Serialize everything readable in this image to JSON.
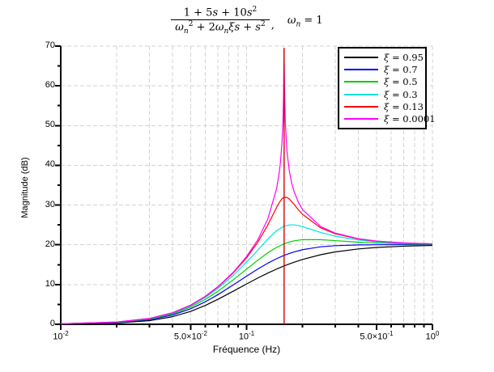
{
  "title": {
    "numerator": "1 + 5s + 10s^{2}",
    "denominator": "ω_{n}^{2} + 2ω_{n}ξs + s^{2}",
    "separator": ",",
    "note": "ω_{n} = 1"
  },
  "chart_data": {
    "type": "line",
    "xscale": "log",
    "xlabel": "Fréquence (Hz)",
    "ylabel": "Magnitude (dB)",
    "xlim": [
      0.01,
      1
    ],
    "ylim": [
      0,
      70
    ],
    "grid": true,
    "grid_color": "#d3d3d3",
    "legend_position": "upper right",
    "xticks": [
      {
        "v": 0.01,
        "label": "10^{-2}"
      },
      {
        "v": 0.05,
        "label": "5.0×10^{-2}"
      },
      {
        "v": 0.1,
        "label": "10^{-1}"
      },
      {
        "v": 0.5,
        "label": "5.0×10^{-1}"
      },
      {
        "v": 1,
        "label": "10^{0}"
      }
    ],
    "xticks_minor": [
      0.02,
      0.03,
      0.04,
      0.06,
      0.07,
      0.08,
      0.09,
      0.2,
      0.3,
      0.4,
      0.6,
      0.7,
      0.8,
      0.9
    ],
    "yticks": [
      0,
      10,
      20,
      30,
      40,
      50,
      60,
      70
    ],
    "yticks_minor": [
      5,
      15,
      25,
      35,
      45,
      55,
      65
    ],
    "resonance_line": {
      "x": 0.159155,
      "y0": 0,
      "y1": 69.5,
      "color": "#d40000"
    },
    "series": [
      {
        "name": "ξ = 0.95",
        "xi": 0.95,
        "color": "#000000",
        "points": [
          [
            0.01,
            0.06
          ],
          [
            0.02,
            0.32
          ],
          [
            0.03,
            0.91
          ],
          [
            0.04,
            1.91
          ],
          [
            0.05,
            3.25
          ],
          [
            0.06,
            4.75
          ],
          [
            0.07,
            6.27
          ],
          [
            0.085,
            8.36
          ],
          [
            0.1,
            10.15
          ],
          [
            0.115,
            11.65
          ],
          [
            0.13,
            12.88
          ],
          [
            0.145,
            13.89
          ],
          [
            0.159,
            14.68
          ],
          [
            0.17,
            15.19
          ],
          [
            0.18,
            15.61
          ],
          [
            0.2,
            16.31
          ],
          [
            0.25,
            17.5
          ],
          [
            0.3,
            18.21
          ],
          [
            0.4,
            18.96
          ],
          [
            0.5,
            19.33
          ],
          [
            0.7,
            19.65
          ],
          [
            1,
            19.83
          ]
        ]
      },
      {
        "name": "ξ = 0.7",
        "xi": 0.7,
        "color": "#0000ff",
        "points": [
          [
            0.01,
            0.09
          ],
          [
            0.02,
            0.43
          ],
          [
            0.03,
            1.15
          ],
          [
            0.04,
            2.34
          ],
          [
            0.05,
            3.9
          ],
          [
            0.06,
            5.66
          ],
          [
            0.07,
            7.44
          ],
          [
            0.085,
            9.94
          ],
          [
            0.1,
            12.12
          ],
          [
            0.115,
            13.92
          ],
          [
            0.13,
            15.37
          ],
          [
            0.145,
            16.51
          ],
          [
            0.159,
            17.33
          ],
          [
            0.17,
            17.82
          ],
          [
            0.18,
            18.2
          ],
          [
            0.2,
            18.77
          ],
          [
            0.25,
            19.5
          ],
          [
            0.3,
            19.78
          ],
          [
            0.4,
            19.96
          ],
          [
            0.5,
            20.0
          ],
          [
            0.7,
            20.01
          ],
          [
            1,
            20.01
          ]
        ]
      },
      {
        "name": "ξ = 0.5",
        "xi": 0.5,
        "color": "#00cc00",
        "points": [
          [
            0.01,
            0.11
          ],
          [
            0.02,
            0.5
          ],
          [
            0.03,
            1.3
          ],
          [
            0.04,
            2.61
          ],
          [
            0.05,
            4.33
          ],
          [
            0.06,
            6.28
          ],
          [
            0.07,
            8.3
          ],
          [
            0.085,
            11.23
          ],
          [
            0.1,
            13.87
          ],
          [
            0.115,
            16.14
          ],
          [
            0.13,
            17.98
          ],
          [
            0.145,
            19.36
          ],
          [
            0.159,
            20.25
          ],
          [
            0.17,
            20.71
          ],
          [
            0.18,
            21.0
          ],
          [
            0.2,
            21.3
          ],
          [
            0.25,
            21.29
          ],
          [
            0.3,
            21.05
          ],
          [
            0.4,
            20.66
          ],
          [
            0.5,
            20.44
          ],
          [
            0.7,
            20.23
          ],
          [
            1,
            20.11
          ]
        ]
      },
      {
        "name": "ξ = 0.3",
        "xi": 0.3,
        "color": "#00e0e0",
        "points": [
          [
            0.01,
            0.12
          ],
          [
            0.02,
            0.54
          ],
          [
            0.03,
            1.41
          ],
          [
            0.04,
            2.8
          ],
          [
            0.05,
            4.64
          ],
          [
            0.06,
            6.76
          ],
          [
            0.07,
            8.99
          ],
          [
            0.085,
            12.36
          ],
          [
            0.1,
            15.62
          ],
          [
            0.115,
            18.7
          ],
          [
            0.13,
            21.44
          ],
          [
            0.145,
            23.54
          ],
          [
            0.159,
            24.69
          ],
          [
            0.17,
            25.02
          ],
          [
            0.18,
            25.02
          ],
          [
            0.19,
            24.84
          ],
          [
            0.2,
            24.56
          ],
          [
            0.25,
            23.11
          ],
          [
            0.3,
            22.16
          ],
          [
            0.4,
            21.2
          ],
          [
            0.5,
            20.76
          ],
          [
            0.7,
            20.38
          ],
          [
            1,
            20.19
          ]
        ]
      },
      {
        "name": "ξ = 0.13",
        "xi": 0.13,
        "color": "#ff0000",
        "points": [
          [
            0.01,
            0.13
          ],
          [
            0.02,
            0.56
          ],
          [
            0.03,
            1.46
          ],
          [
            0.04,
            2.89
          ],
          [
            0.05,
            4.79
          ],
          [
            0.06,
            6.99
          ],
          [
            0.07,
            9.35
          ],
          [
            0.085,
            12.99
          ],
          [
            0.1,
            16.74
          ],
          [
            0.115,
            20.69
          ],
          [
            0.13,
            24.96
          ],
          [
            0.145,
            29.4
          ],
          [
            0.15,
            30.66
          ],
          [
            0.155,
            31.56
          ],
          [
            0.159,
            31.95
          ],
          [
            0.165,
            31.92
          ],
          [
            0.17,
            31.5
          ],
          [
            0.18,
            30.17
          ],
          [
            0.19,
            28.82
          ],
          [
            0.2,
            27.67
          ],
          [
            0.25,
            24.28
          ],
          [
            0.3,
            22.78
          ],
          [
            0.4,
            21.47
          ],
          [
            0.5,
            20.91
          ],
          [
            0.7,
            20.46
          ],
          [
            1,
            20.22
          ]
        ]
      },
      {
        "name": "ξ = 0.0001",
        "xi": 0.0001,
        "color": "#ff00ff",
        "points": [
          [
            0.01,
            0.13
          ],
          [
            0.02,
            0.57
          ],
          [
            0.03,
            1.47
          ],
          [
            0.04,
            2.91
          ],
          [
            0.05,
            4.83
          ],
          [
            0.06,
            7.05
          ],
          [
            0.07,
            9.43
          ],
          [
            0.085,
            13.15
          ],
          [
            0.1,
            17.05
          ],
          [
            0.115,
            21.31
          ],
          [
            0.13,
            26.45
          ],
          [
            0.145,
            34.09
          ],
          [
            0.15,
            38.3
          ],
          [
            0.152,
            40.6
          ],
          [
            0.155,
            45.57
          ],
          [
            0.157,
            51.43
          ],
          [
            0.158,
            56.93
          ],
          [
            0.159,
            69.5
          ],
          [
            0.16,
            59.8
          ],
          [
            0.1615,
            51.05
          ],
          [
            0.165,
            43.38
          ],
          [
            0.17,
            38.41
          ],
          [
            0.175,
            35.45
          ],
          [
            0.18,
            33.42
          ],
          [
            0.19,
            30.68
          ],
          [
            0.2,
            28.86
          ],
          [
            0.25,
            24.61
          ],
          [
            0.3,
            22.94
          ],
          [
            0.4,
            21.53
          ],
          [
            0.5,
            20.95
          ],
          [
            0.7,
            20.47
          ],
          [
            1,
            20.23
          ]
        ]
      }
    ]
  }
}
